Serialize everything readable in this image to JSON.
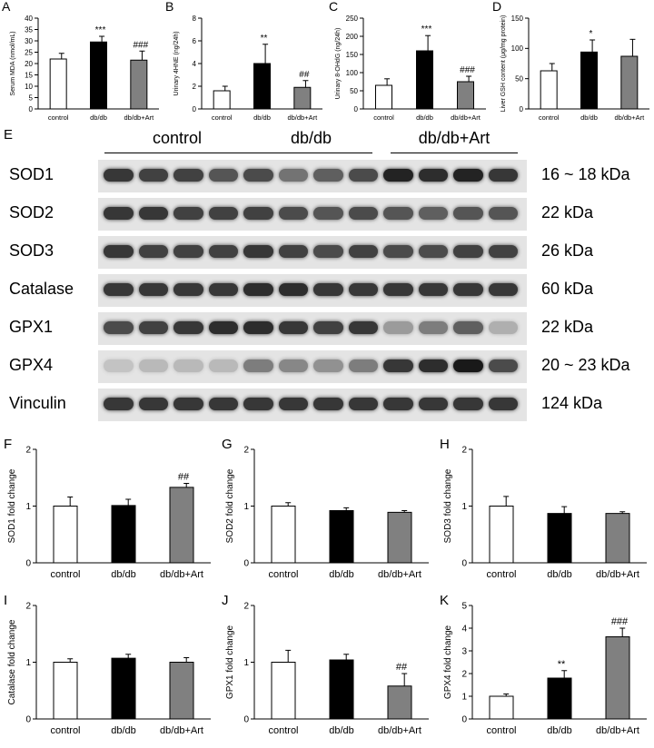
{
  "chart_data": [
    {
      "id": "A",
      "letter": "A",
      "type": "bar",
      "categories": [
        "control",
        "db/db",
        "db/db+Art"
      ],
      "values": [
        22,
        29.5,
        21.5
      ],
      "errors": [
        2.5,
        2.5,
        4
      ],
      "annotations": [
        "",
        "***",
        "###"
      ],
      "ylabel": "Serum MDA (nmol/mL)",
      "ylim": [
        0,
        40
      ],
      "yticks": [
        "0",
        "5",
        "10",
        "15",
        "20",
        "25",
        "30",
        "35",
        "40"
      ],
      "fills": [
        "#ffffff",
        "#000000",
        "#808080"
      ]
    },
    {
      "id": "B",
      "letter": "B",
      "type": "bar",
      "categories": [
        "control",
        "db/db",
        "db/db+Art"
      ],
      "values": [
        1.6,
        4.0,
        1.9
      ],
      "errors": [
        0.4,
        1.7,
        0.6
      ],
      "annotations": [
        "",
        "**",
        "##"
      ],
      "ylabel": "Urinary 4HNE (ng/24h)",
      "ylim": [
        0,
        8
      ],
      "yticks": [
        "0",
        "2",
        "4",
        "6",
        "8"
      ],
      "fills": [
        "#ffffff",
        "#000000",
        "#808080"
      ]
    },
    {
      "id": "C",
      "letter": "C",
      "type": "bar",
      "categories": [
        "control",
        "db/db",
        "db/db+Art"
      ],
      "values": [
        65,
        160,
        75
      ],
      "errors": [
        18,
        42,
        15
      ],
      "annotations": [
        "",
        "***",
        "###"
      ],
      "ylabel": "Urinary 8-OHdG (ng/24h)",
      "ylim": [
        0,
        250
      ],
      "yticks": [
        "0",
        "50",
        "100",
        "150",
        "200",
        "250"
      ],
      "fills": [
        "#ffffff",
        "#000000",
        "#808080"
      ]
    },
    {
      "id": "D",
      "letter": "D",
      "type": "bar",
      "categories": [
        "control",
        "db/db",
        "db/db+Art"
      ],
      "values": [
        63,
        94,
        87
      ],
      "errors": [
        12,
        20,
        28
      ],
      "annotations": [
        "",
        "*",
        ""
      ],
      "ylabel": "Liver GSH content (μg/mg protein)",
      "ylim": [
        0,
        150
      ],
      "yticks": [
        "0",
        "50",
        "100",
        "150"
      ],
      "fills": [
        "#ffffff",
        "#000000",
        "#808080"
      ]
    },
    {
      "id": "F",
      "letter": "F",
      "type": "bar",
      "categories": [
        "control",
        "db/db",
        "db/db+Art"
      ],
      "values": [
        1.0,
        1.01,
        1.33
      ],
      "errors": [
        0.16,
        0.11,
        0.07
      ],
      "annotations": [
        "",
        "",
        "##"
      ],
      "ylabel": "SOD1 fold change",
      "ylim": [
        0,
        2
      ],
      "yticks": [
        "0",
        "1",
        "2"
      ],
      "fills": [
        "#ffffff",
        "#000000",
        "#808080"
      ]
    },
    {
      "id": "G",
      "letter": "G",
      "type": "bar",
      "categories": [
        "control",
        "db/db",
        "db/db+Art"
      ],
      "values": [
        1.0,
        0.92,
        0.89
      ],
      "errors": [
        0.06,
        0.05,
        0.03
      ],
      "annotations": [
        "",
        "",
        ""
      ],
      "ylabel": "SOD2 fold change",
      "ylim": [
        0,
        2
      ],
      "yticks": [
        "0",
        "1",
        "2"
      ],
      "fills": [
        "#ffffff",
        "#000000",
        "#808080"
      ]
    },
    {
      "id": "H",
      "letter": "H",
      "type": "bar",
      "categories": [
        "control",
        "db/db",
        "db/db+Art"
      ],
      "values": [
        1.0,
        0.87,
        0.87
      ],
      "errors": [
        0.17,
        0.12,
        0.03
      ],
      "annotations": [
        "",
        "",
        ""
      ],
      "ylabel": "SOD3 fold change",
      "ylim": [
        0,
        2
      ],
      "yticks": [
        "0",
        "1",
        "2"
      ],
      "fills": [
        "#ffffff",
        "#000000",
        "#808080"
      ]
    },
    {
      "id": "I",
      "letter": "I",
      "type": "bar",
      "categories": [
        "control",
        "db/db",
        "db/db+Art"
      ],
      "values": [
        1.0,
        1.07,
        1.0
      ],
      "errors": [
        0.06,
        0.07,
        0.08
      ],
      "annotations": [
        "",
        "",
        ""
      ],
      "ylabel": "Catalase fold change",
      "ylim": [
        0,
        2
      ],
      "yticks": [
        "0",
        "1",
        "2"
      ],
      "fills": [
        "#ffffff",
        "#000000",
        "#808080"
      ]
    },
    {
      "id": "J",
      "letter": "J",
      "type": "bar",
      "categories": [
        "control",
        "db/db",
        "db/db+Art"
      ],
      "values": [
        1.0,
        1.04,
        0.58
      ],
      "errors": [
        0.21,
        0.1,
        0.22
      ],
      "annotations": [
        "",
        "",
        "##"
      ],
      "ylabel": "GPX1 fold change",
      "ylim": [
        0,
        2
      ],
      "yticks": [
        "0",
        "1",
        "2"
      ],
      "fills": [
        "#ffffff",
        "#000000",
        "#808080"
      ]
    },
    {
      "id": "K",
      "letter": "K",
      "type": "bar",
      "categories": [
        "control",
        "db/db",
        "db/db+Art"
      ],
      "values": [
        1.0,
        1.8,
        3.62
      ],
      "errors": [
        0.1,
        0.33,
        0.38
      ],
      "annotations": [
        "",
        "**",
        "###"
      ],
      "ylabel": "GPX4 fold change",
      "ylim": [
        0,
        5
      ],
      "yticks": [
        "0",
        "1",
        "2",
        "3",
        "4",
        "5"
      ],
      "fills": [
        "#ffffff",
        "#000000",
        "#808080"
      ]
    }
  ],
  "western": {
    "letter": "E",
    "groups": [
      "control",
      "db/db",
      "db/db+Art"
    ],
    "rows": [
      {
        "protein": "SOD1",
        "kda": "16 ~ 18 kDa",
        "intensity": [
          0.85,
          0.8,
          0.8,
          0.7,
          0.75,
          0.55,
          0.65,
          0.75,
          0.95,
          0.9,
          0.95,
          0.85
        ]
      },
      {
        "protein": "SOD2",
        "kda": "22 kDa",
        "intensity": [
          0.85,
          0.85,
          0.8,
          0.8,
          0.8,
          0.75,
          0.7,
          0.75,
          0.7,
          0.65,
          0.7,
          0.7
        ]
      },
      {
        "protein": "SOD3",
        "kda": "26 kDa",
        "intensity": [
          0.85,
          0.8,
          0.8,
          0.8,
          0.85,
          0.8,
          0.75,
          0.8,
          0.75,
          0.75,
          0.8,
          0.8
        ]
      },
      {
        "protein": "Catalase",
        "kda": "60 kDa",
        "intensity": [
          0.85,
          0.85,
          0.85,
          0.85,
          0.9,
          0.9,
          0.85,
          0.85,
          0.85,
          0.85,
          0.85,
          0.85
        ]
      },
      {
        "protein": "GPX1",
        "kda": "22 kDa",
        "intensity": [
          0.75,
          0.8,
          0.85,
          0.9,
          0.9,
          0.85,
          0.8,
          0.85,
          0.35,
          0.5,
          0.65,
          0.25
        ]
      },
      {
        "protein": "GPX4",
        "kda": "20 ~ 23 kDa",
        "intensity": [
          0.15,
          0.2,
          0.2,
          0.2,
          0.5,
          0.45,
          0.4,
          0.5,
          0.85,
          0.9,
          1.0,
          0.75
        ]
      },
      {
        "protein": "Vinculin",
        "kda": "124 kDa",
        "intensity": [
          0.85,
          0.85,
          0.85,
          0.85,
          0.85,
          0.85,
          0.85,
          0.85,
          0.85,
          0.85,
          0.85,
          0.85
        ]
      }
    ]
  }
}
